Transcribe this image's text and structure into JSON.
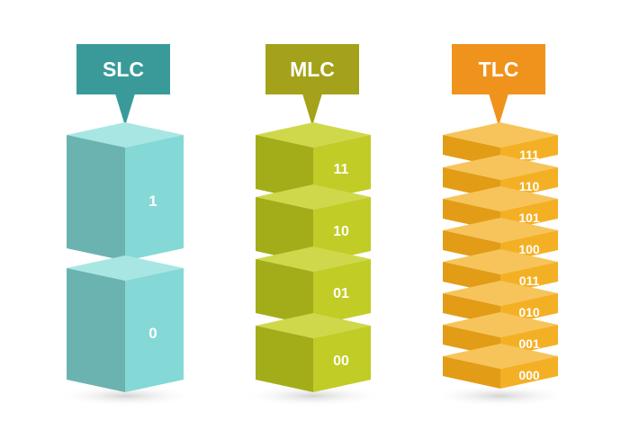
{
  "columns": [
    {
      "title": "SLC",
      "colors": {
        "tag": "#3a9a9a",
        "top": "#a8e6e4",
        "left": "#6bb3b1",
        "right": "#84d8d6"
      },
      "cells": [
        "1",
        "0"
      ]
    },
    {
      "title": "MLC",
      "colors": {
        "tag": "#a3a21a",
        "top": "#cfd84a",
        "left": "#a3ad1a",
        "right": "#c1cc26"
      },
      "cells": [
        "11",
        "10",
        "01",
        "00"
      ]
    },
    {
      "title": "TLC",
      "colors": {
        "tag": "#f0931c",
        "top": "#f6c45a",
        "left": "#e29c16",
        "right": "#f4b025"
      },
      "cells": [
        "111",
        "110",
        "101",
        "100",
        "011",
        "010",
        "001",
        "000"
      ]
    }
  ]
}
